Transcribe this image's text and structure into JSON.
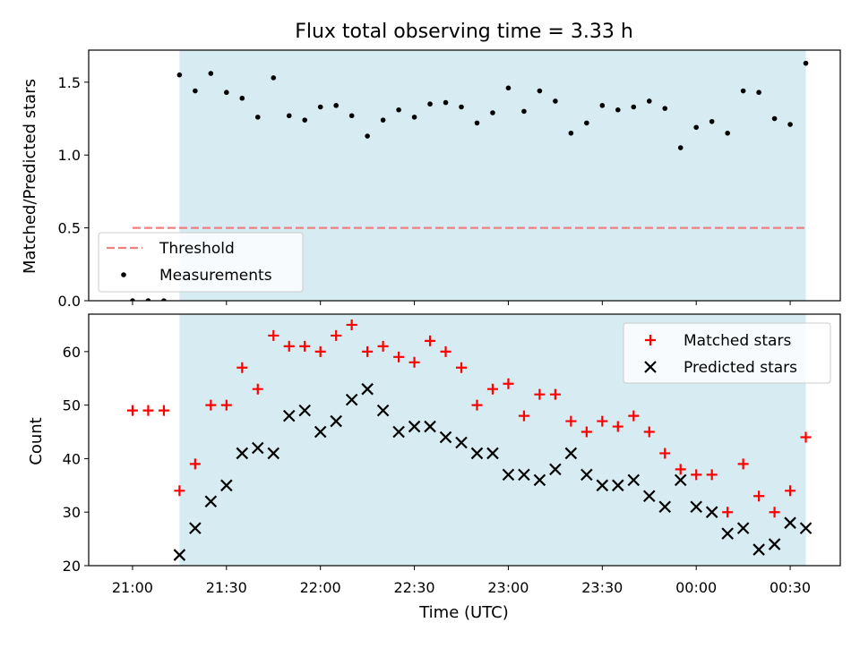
{
  "chart_data": [
    {
      "type": "scatter",
      "title": "Flux total observing time = 3.33 h",
      "ylabel": "Matched/Predicted stars",
      "xlabel": "",
      "x_axis": "time",
      "xlim": [
        "20:46",
        "00:46"
      ],
      "ylim": [
        0,
        1.72
      ],
      "yticks": [
        0.0,
        0.5,
        1.0,
        1.5
      ],
      "ytick_labels": [
        "0.0",
        "0.5",
        "1.0",
        "1.5"
      ],
      "grid": false,
      "legend_position": "lower-left",
      "shaded_region": {
        "x_start": "21:15",
        "x_end": "00:35",
        "color": "#add8e6"
      },
      "threshold": {
        "name": "Threshold",
        "value": 0.5,
        "x_start": "21:00",
        "x_end": "00:35",
        "color": "#f08080",
        "style": "dashed"
      },
      "series": [
        {
          "name": "Measurements",
          "color": "#000000",
          "marker": "dot",
          "x": [
            "21:00",
            "21:05",
            "21:10",
            "21:15",
            "21:20",
            "21:25",
            "21:30",
            "21:35",
            "21:40",
            "21:45",
            "21:50",
            "21:55",
            "22:00",
            "22:05",
            "22:10",
            "22:15",
            "22:20",
            "22:25",
            "22:30",
            "22:35",
            "22:40",
            "22:45",
            "22:50",
            "22:55",
            "23:00",
            "23:05",
            "23:10",
            "23:15",
            "23:20",
            "23:25",
            "23:30",
            "23:35",
            "23:40",
            "23:45",
            "23:50",
            "23:55",
            "00:00",
            "00:05",
            "00:10",
            "00:15",
            "00:20",
            "00:25",
            "00:30",
            "00:35"
          ],
          "y": [
            0,
            0,
            0,
            1.55,
            1.44,
            1.56,
            1.43,
            1.39,
            1.26,
            1.53,
            1.27,
            1.24,
            1.33,
            1.34,
            1.27,
            1.13,
            1.24,
            1.31,
            1.26,
            1.35,
            1.36,
            1.33,
            1.22,
            1.29,
            1.46,
            1.3,
            1.44,
            1.37,
            1.15,
            1.22,
            1.34,
            1.31,
            1.33,
            1.37,
            1.32,
            1.05,
            1.19,
            1.23,
            1.15,
            1.44,
            1.43,
            1.25,
            1.21,
            1.63
          ]
        }
      ]
    },
    {
      "type": "scatter",
      "title": "",
      "ylabel": "Count",
      "xlabel": "Time (UTC)",
      "x_axis": "time",
      "xlim": [
        "20:46",
        "00:46"
      ],
      "ylim": [
        20,
        67
      ],
      "yticks": [
        20,
        30,
        40,
        50,
        60
      ],
      "xticks": [
        "21:00",
        "21:30",
        "22:00",
        "22:30",
        "23:00",
        "23:30",
        "00:00",
        "00:30"
      ],
      "grid": false,
      "legend_position": "top-right",
      "shaded_region": {
        "x_start": "21:15",
        "x_end": "00:35",
        "color": "#add8e6"
      },
      "series": [
        {
          "name": "Matched stars",
          "color": "#ff0000",
          "marker": "plus",
          "x": [
            "21:00",
            "21:05",
            "21:10",
            "21:15",
            "21:20",
            "21:25",
            "21:30",
            "21:35",
            "21:40",
            "21:45",
            "21:50",
            "21:55",
            "22:00",
            "22:05",
            "22:10",
            "22:15",
            "22:20",
            "22:25",
            "22:30",
            "22:35",
            "22:40",
            "22:45",
            "22:50",
            "22:55",
            "23:00",
            "23:05",
            "23:10",
            "23:15",
            "23:20",
            "23:25",
            "23:30",
            "23:35",
            "23:40",
            "23:45",
            "23:50",
            "23:55",
            "00:00",
            "00:05",
            "00:10",
            "00:15",
            "00:20",
            "00:25",
            "00:30",
            "00:35"
          ],
          "y": [
            49,
            49,
            49,
            34,
            39,
            50,
            50,
            57,
            53,
            63,
            61,
            61,
            60,
            63,
            65,
            60,
            61,
            59,
            58,
            62,
            60,
            57,
            50,
            53,
            54,
            48,
            52,
            52,
            47,
            45,
            47,
            46,
            48,
            45,
            41,
            38,
            37,
            37,
            30,
            39,
            33,
            30,
            34,
            44
          ]
        },
        {
          "name": "Predicted stars",
          "color": "#000000",
          "marker": "x",
          "x": [
            "21:15",
            "21:20",
            "21:25",
            "21:30",
            "21:35",
            "21:40",
            "21:45",
            "21:50",
            "21:55",
            "22:00",
            "22:05",
            "22:10",
            "22:15",
            "22:20",
            "22:25",
            "22:30",
            "22:35",
            "22:40",
            "22:45",
            "22:50",
            "22:55",
            "23:00",
            "23:05",
            "23:10",
            "23:15",
            "23:20",
            "23:25",
            "23:30",
            "23:35",
            "23:40",
            "23:45",
            "23:50",
            "23:55",
            "00:00",
            "00:05",
            "00:10",
            "00:15",
            "00:20",
            "00:25",
            "00:30",
            "00:35"
          ],
          "y": [
            22,
            27,
            32,
            35,
            41,
            42,
            41,
            48,
            49,
            45,
            47,
            51,
            53,
            49,
            45,
            46,
            46,
            44,
            43,
            41,
            41,
            37,
            37,
            36,
            38,
            41,
            37,
            35,
            35,
            36,
            33,
            31,
            36,
            31,
            30,
            26,
            27,
            23,
            24,
            28,
            27
          ]
        }
      ]
    }
  ]
}
